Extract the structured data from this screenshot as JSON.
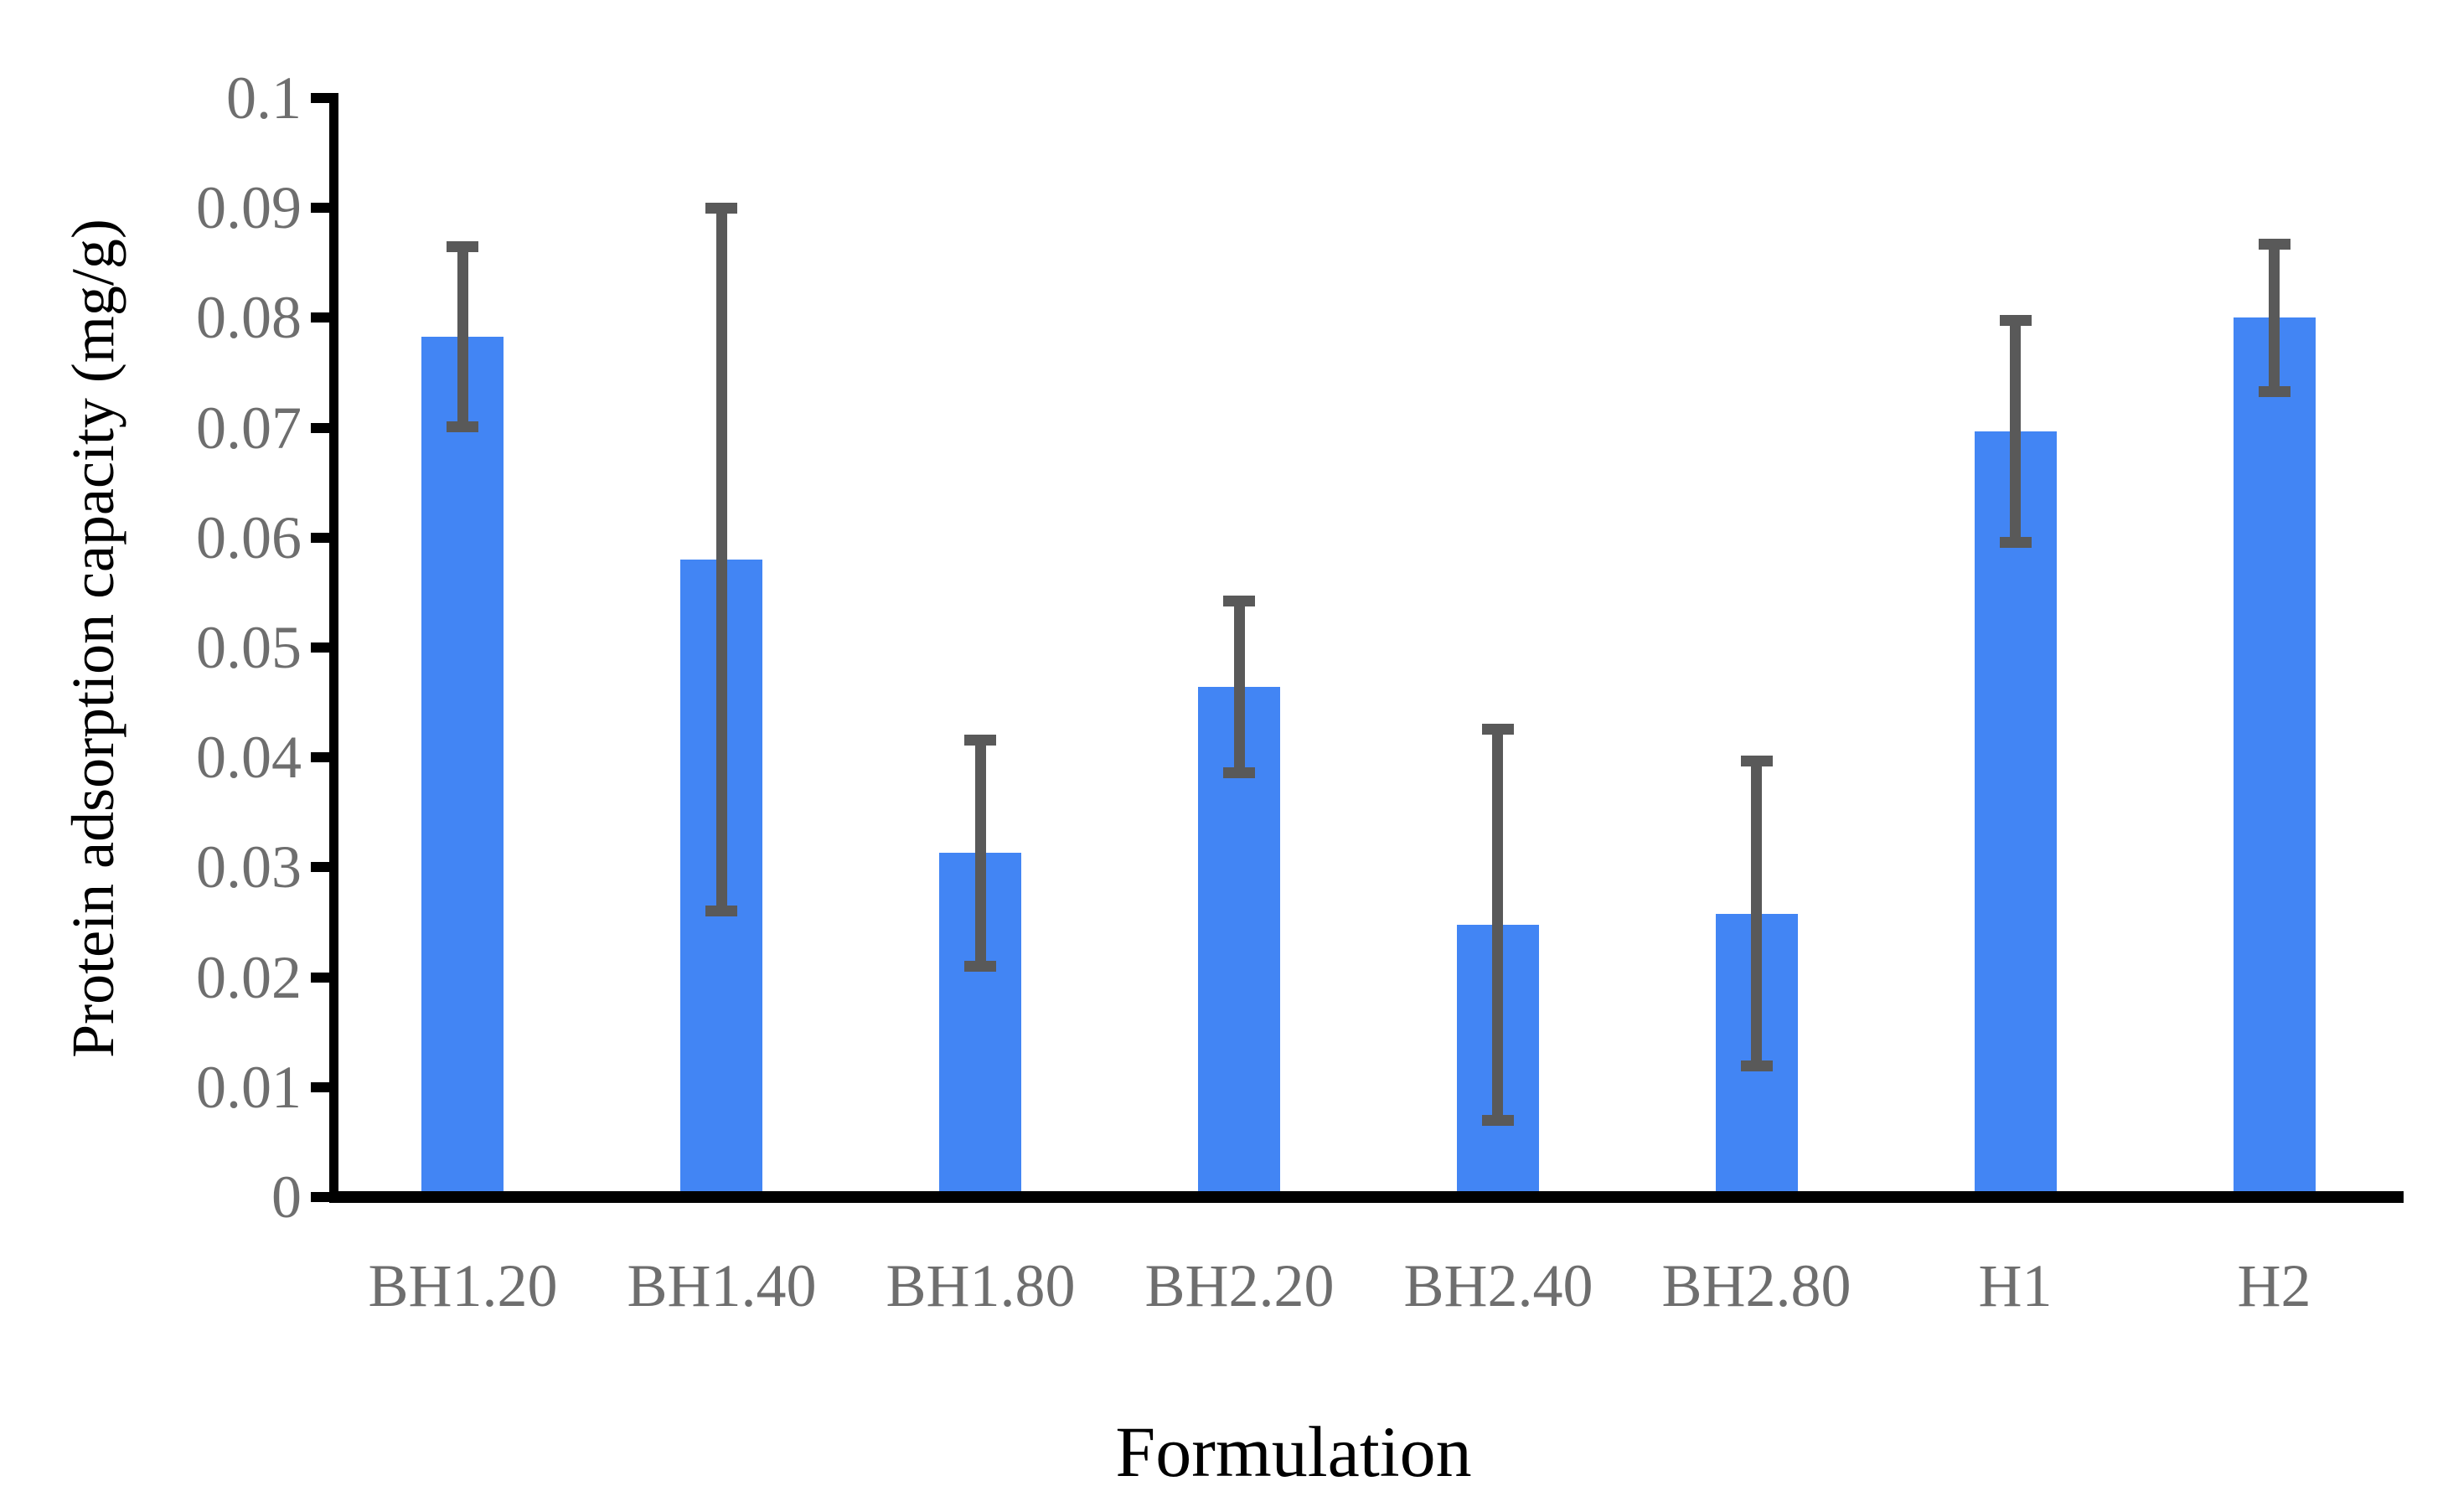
{
  "chart_data": {
    "type": "bar",
    "title": "",
    "xlabel": "Formulation",
    "ylabel": "Protein adsorption capacity (mg/g)",
    "categories": [
      "BH1.20",
      "BH1.40",
      "BH1.80",
      "BH2.20",
      "BH2.40",
      "BH2.80",
      "H1",
      "H2"
    ],
    "values": [
      0.0783,
      0.058,
      0.0313,
      0.0464,
      0.0248,
      0.0258,
      0.0697,
      0.08
    ],
    "error_bars": [
      0.0082,
      0.032,
      0.0103,
      0.0078,
      0.0178,
      0.0139,
      0.0101,
      0.0067
    ],
    "yticks": [
      "0",
      "0.01",
      "0.02",
      "0.03",
      "0.04",
      "0.05",
      "0.06",
      "0.07",
      "0.08",
      "0.09",
      "0.1"
    ],
    "ylim": [
      0,
      0.1
    ],
    "grid": "off",
    "legend": "none",
    "colors": {
      "bar": "#4285F4",
      "error_bar": "#595959",
      "axis": "#000000",
      "tick_labels": "#6e6e6e",
      "axis_titles": "#000000"
    }
  }
}
